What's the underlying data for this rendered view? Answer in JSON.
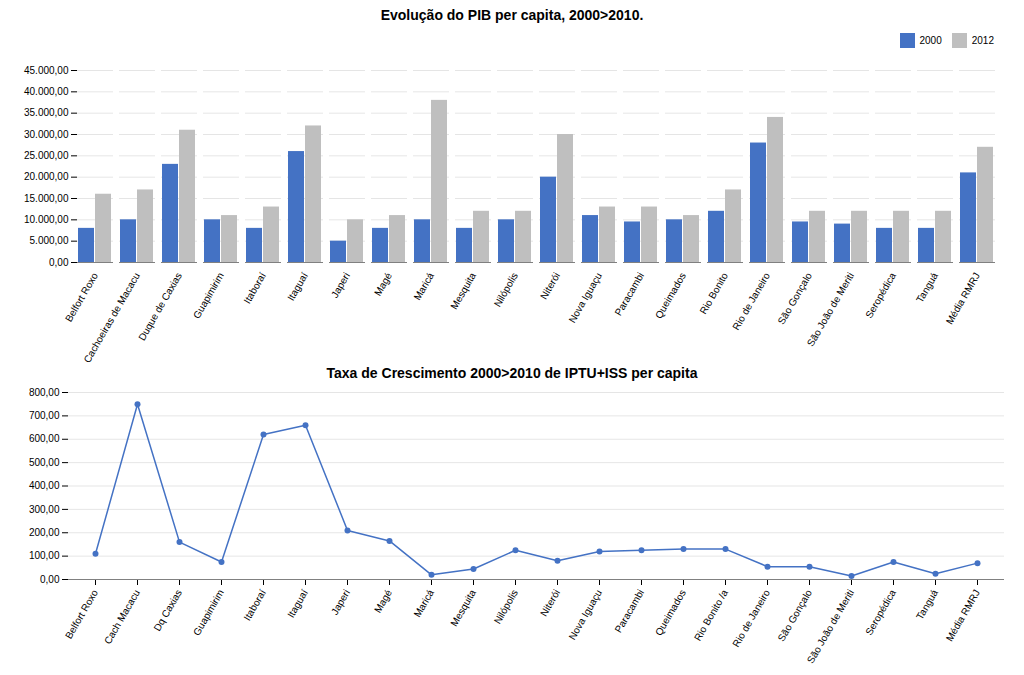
{
  "chart_data": [
    {
      "type": "bar",
      "title": "Evolução do PIB per capita, 2000>2010.",
      "categories": [
        "Belfort Roxo",
        "Cachoeiras de Macacu",
        "Duque de Caxias",
        "Guapimirim",
        "Itaboraí",
        "Itaguaí",
        "Japeri",
        "Magé",
        "Maricá",
        "Mesquita",
        "Nilópolis",
        "Niterói",
        "Nova Iguaçu",
        "Paracambi",
        "Queimados",
        "Rio Bonito",
        "Rio de Janeiro",
        "São Gonçalo",
        "São João de Meriti",
        "Seropédica",
        "Tanguá",
        "Média RMRJ"
      ],
      "series": [
        {
          "name": "2000",
          "color": "#4472C4",
          "values": [
            8000,
            10000,
            23000,
            10000,
            8000,
            26000,
            5000,
            8000,
            10000,
            8000,
            10000,
            20000,
            11000,
            9500,
            10000,
            12000,
            28000,
            9500,
            9000,
            8000,
            8000,
            21000
          ]
        },
        {
          "name": "2012",
          "color": "#BFBFBF",
          "values": [
            16000,
            17000,
            31000,
            11000,
            13000,
            32000,
            10000,
            11000,
            38000,
            12000,
            12000,
            30000,
            13000,
            13000,
            11000,
            17000,
            34000,
            12000,
            12000,
            12000,
            12000,
            27000
          ]
        }
      ],
      "ylim": [
        0,
        45000
      ],
      "yticks": [
        {
          "value": 0,
          "label": "0,00"
        },
        {
          "value": 5000,
          "label": "5.000,00"
        },
        {
          "value": 10000,
          "label": "10.000,00"
        },
        {
          "value": 15000,
          "label": "15.000,00"
        },
        {
          "value": 20000,
          "label": "20.000,00"
        },
        {
          "value": 25000,
          "label": "25.000,00"
        },
        {
          "value": 30000,
          "label": "30.000,00"
        },
        {
          "value": 35000,
          "label": "35.000,00"
        },
        {
          "value": 40000,
          "label": "40.000,00"
        },
        {
          "value": 45000,
          "label": "45.000,00"
        }
      ],
      "grid": true,
      "legend": "upper right"
    },
    {
      "type": "line",
      "title": "Taxa de Crescimento 2000>2010 de IPTU+ISS per capita",
      "categories": [
        "Belfort Roxo",
        "Cach Macacu",
        "Dq Caxias",
        "Guapimirim",
        "Itaboraí",
        "Itaguaí",
        "Japeri",
        "Magé",
        "Maricá",
        "Mesquita",
        "Nilópolis",
        "Niterói",
        "Nova Iguaçu",
        "Paracambi",
        "Queimados",
        "Rio Bonito /a",
        "Rio de Janeiro",
        "São Gonçalo",
        "São João de Meriti",
        "Seropédica",
        "Tanguá",
        "Média RMRJ"
      ],
      "values": [
        110,
        750,
        160,
        75,
        620,
        660,
        210,
        165,
        20,
        45,
        125,
        80,
        120,
        125,
        130,
        130,
        55,
        55,
        15,
        75,
        25,
        70
      ],
      "color": "#4472C4",
      "marker": "circle",
      "ylim": [
        0,
        800
      ],
      "yticks": [
        {
          "value": 0,
          "label": "0,00"
        },
        {
          "value": 100,
          "label": "100,00"
        },
        {
          "value": 200,
          "label": "200,00"
        },
        {
          "value": 300,
          "label": "300,00"
        },
        {
          "value": 400,
          "label": "400,00"
        },
        {
          "value": 500,
          "label": "500,00"
        },
        {
          "value": 600,
          "label": "600,00"
        },
        {
          "value": 700,
          "label": "700,00"
        },
        {
          "value": 800,
          "label": "800,00"
        }
      ],
      "grid": true
    }
  ]
}
